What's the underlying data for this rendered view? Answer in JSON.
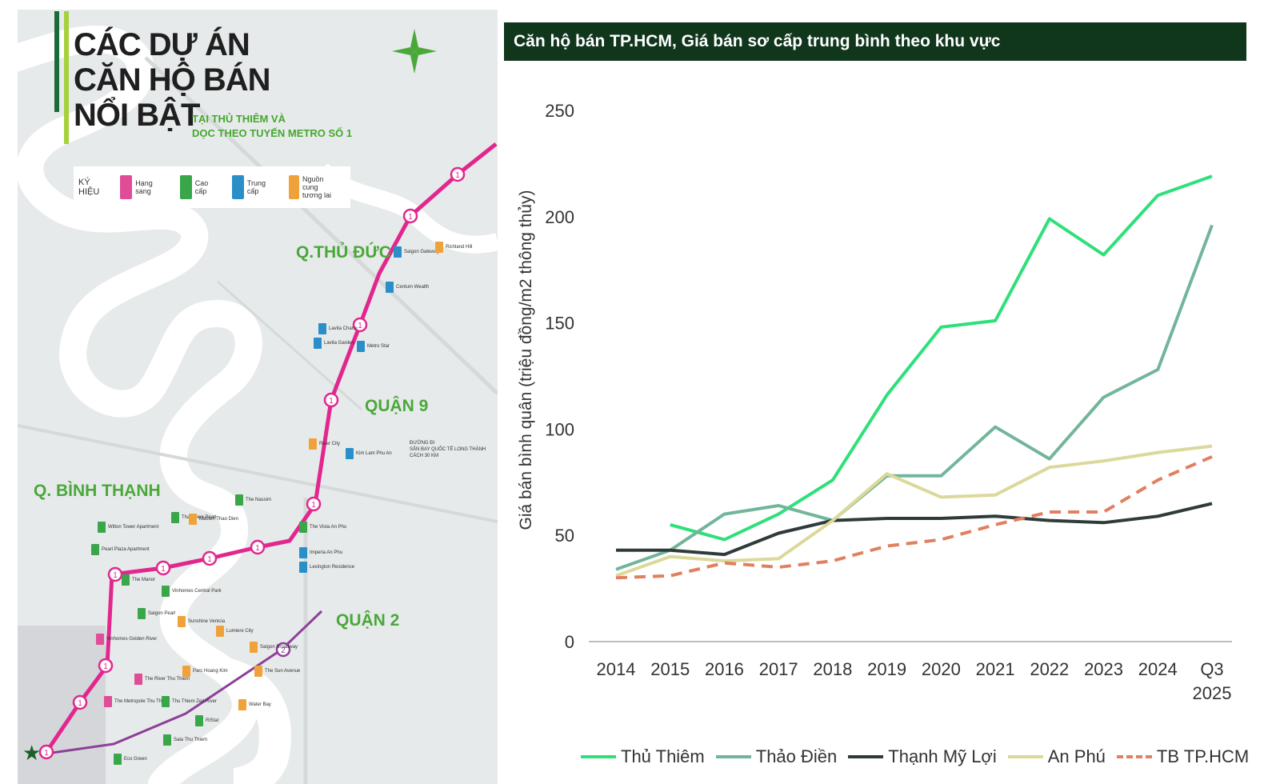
{
  "map": {
    "title_lines": [
      "CÁC DỰ ÁN",
      "CĂN HỘ BÁN",
      "NỔI BẬT"
    ],
    "subtitle_lines": [
      "TẠI THỦ THIÊM VÀ",
      "DỌC THEO TUYẾN METRO SỐ 1"
    ],
    "legend": {
      "title": "KÝ HIỆU",
      "items": [
        {
          "label": "Hạng sang",
          "color": "#e04c97"
        },
        {
          "label": "Cao cấp",
          "color": "#3aa64a"
        },
        {
          "label": "Trung cấp",
          "color": "#2a8fc9"
        },
        {
          "label": "Nguồn cung tương lai",
          "color": "#f0a23a"
        }
      ]
    },
    "districts": [
      "Q.THỦ ĐỨC",
      "QUẬN 9",
      "Q. BÌNH THẠNH",
      "QUẬN 2"
    ],
    "airport_note": [
      "ĐƯỜNG ĐI",
      "SÂN BAY QUỐC TẾ LONG THÀNH",
      "CÁCH 30 KM"
    ],
    "metro_marker_1": "1",
    "metro_marker_2": "2",
    "projects": [
      {
        "name": "Saigon Gateway",
        "type": "mid"
      },
      {
        "name": "Richland Hill",
        "type": "future"
      },
      {
        "name": "Centum Wealth",
        "type": "mid"
      },
      {
        "name": "Lavita Charm",
        "type": "mid"
      },
      {
        "name": "Lavita Garden",
        "type": "mid"
      },
      {
        "name": "Metro Star",
        "type": "mid"
      },
      {
        "name": "River City",
        "type": "future"
      },
      {
        "name": "Kim Lam Phu An",
        "type": "mid"
      },
      {
        "name": "Wilton Tower Apartment",
        "type": "high"
      },
      {
        "name": "Pearl Plaza Apartment",
        "type": "high"
      },
      {
        "name": "Thao Dien Pearl",
        "type": "high"
      },
      {
        "name": "Masteri Thao Dien",
        "type": "future"
      },
      {
        "name": "The Nassim",
        "type": "high"
      },
      {
        "name": "The Vista An Phu",
        "type": "high"
      },
      {
        "name": "Imperia An Phu",
        "type": "mid"
      },
      {
        "name": "Lexington Residence",
        "type": "mid"
      },
      {
        "name": "The Manor",
        "type": "high"
      },
      {
        "name": "Vinhomes Central Park",
        "type": "high"
      },
      {
        "name": "Saigon Pearl",
        "type": "high"
      },
      {
        "name": "Sunshine Venicia",
        "type": "future"
      },
      {
        "name": "Lumiere City",
        "type": "future"
      },
      {
        "name": "Saigon Broadway",
        "type": "future"
      },
      {
        "name": "Vinhomes Golden River",
        "type": "lux"
      },
      {
        "name": "The River Thu Thiem",
        "type": "lux"
      },
      {
        "name": "The Metropole Thu Thiem",
        "type": "lux"
      },
      {
        "name": "Thu Thiem Zeit River",
        "type": "high"
      },
      {
        "name": "Parc Hoang Kim",
        "type": "future"
      },
      {
        "name": "Water Bay",
        "type": "future"
      },
      {
        "name": "The Sun Avenue",
        "type": "future"
      },
      {
        "name": "Sala Thu Thiem",
        "type": "high"
      },
      {
        "name": "RiStar",
        "type": "high"
      },
      {
        "name": "Eco Green",
        "type": "high"
      }
    ]
  },
  "chart_data": {
    "type": "line",
    "title": "Căn hộ bán TP.HCM, Giá bán sơ cấp trung bình theo khu vực",
    "ylabel": "Giá bán bình quân (triệu đồng/m2 thông thủy)",
    "xlabel": "",
    "ylim": [
      0,
      250
    ],
    "yticks": [
      0,
      50,
      100,
      150,
      200,
      250
    ],
    "categories": [
      "2014",
      "2015",
      "2016",
      "2017",
      "2018",
      "2019",
      "2020",
      "2021",
      "2022",
      "2023",
      "2024",
      "Q3 2025"
    ],
    "category_lines": [
      [
        "2014"
      ],
      [
        "2015"
      ],
      [
        "2016"
      ],
      [
        "2017"
      ],
      [
        "2018"
      ],
      [
        "2019"
      ],
      [
        "2020"
      ],
      [
        "2021"
      ],
      [
        "2022"
      ],
      [
        "2023"
      ],
      [
        "2024"
      ],
      [
        "Q3",
        "2025"
      ]
    ],
    "legend_position": "bottom",
    "grid": false,
    "series": [
      {
        "name": "Thủ Thiêm",
        "color": "#2ee07a",
        "dashed": false,
        "values": [
          null,
          55,
          48,
          60,
          76,
          116,
          148,
          151,
          199,
          182,
          210,
          219
        ]
      },
      {
        "name": "Thảo Điền",
        "color": "#72b59a",
        "dashed": false,
        "values": [
          34,
          43,
          60,
          64,
          57,
          78,
          78,
          101,
          86,
          115,
          128,
          196
        ]
      },
      {
        "name": "Thạnh Mỹ Lợi",
        "color": "#2f3b3a",
        "dashed": false,
        "values": [
          43,
          43,
          41,
          51,
          57,
          58,
          58,
          59,
          57,
          56,
          59,
          65
        ]
      },
      {
        "name": "An Phú",
        "color": "#dbd99a",
        "dashed": false,
        "values": [
          31,
          40,
          38,
          39,
          57,
          79,
          68,
          69,
          82,
          85,
          89,
          92
        ]
      },
      {
        "name": "TB TP.HCM",
        "color": "#e08060",
        "dashed": true,
        "values": [
          30,
          31,
          37,
          35,
          38,
          45,
          48,
          55,
          61,
          61,
          76,
          87
        ]
      }
    ]
  }
}
